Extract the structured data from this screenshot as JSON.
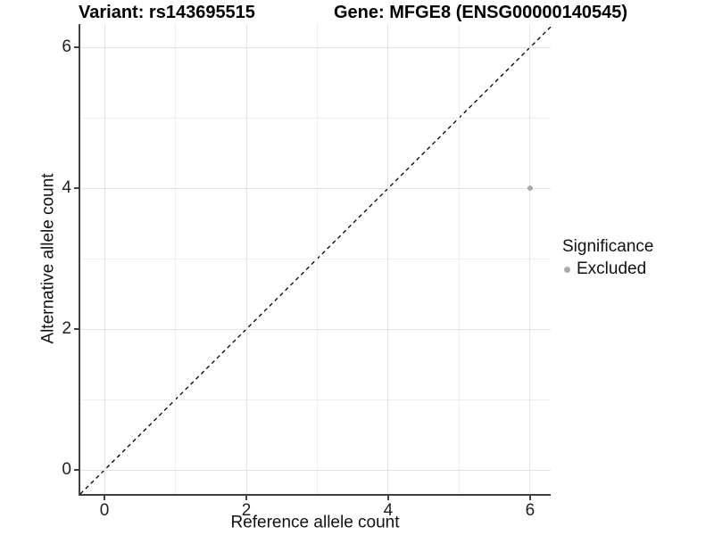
{
  "chart_data": {
    "type": "scatter",
    "title_left": "Variant: rs143695515",
    "title_right": "Gene: MFGE8 (ENSG00000140545)",
    "xlabel": "Reference allele count",
    "ylabel": "Alternative allele count",
    "xlim": [
      -0.34,
      6.29
    ],
    "ylim": [
      -0.34,
      6.33
    ],
    "xticks": [
      0,
      2,
      4,
      6
    ],
    "yticks": [
      0,
      2,
      4,
      6
    ],
    "x_minor_gridlines": [
      1,
      3,
      5
    ],
    "y_minor_gridlines": [
      1,
      3,
      5
    ],
    "grid": "major and minor, on",
    "identity_line": {
      "slope": 1,
      "intercept": 0,
      "style": "dashed",
      "color": "#000000"
    },
    "series": [
      {
        "name": "Excluded",
        "color": "#ababab",
        "points": [
          {
            "x": 6,
            "y": 4
          }
        ]
      }
    ],
    "legend": {
      "title": "Significance",
      "position": "right",
      "items": [
        {
          "label": "Excluded",
          "color": "#ababab"
        }
      ]
    }
  },
  "colors": {
    "background": "#ffffff",
    "axis_line": "#404040",
    "tick_mark": "#404040",
    "grid_major": "#e3e3e3",
    "grid_minor": "#efefef",
    "title_text": "#000000",
    "axis_text": "#1f1f1f",
    "point": "#ababab"
  }
}
